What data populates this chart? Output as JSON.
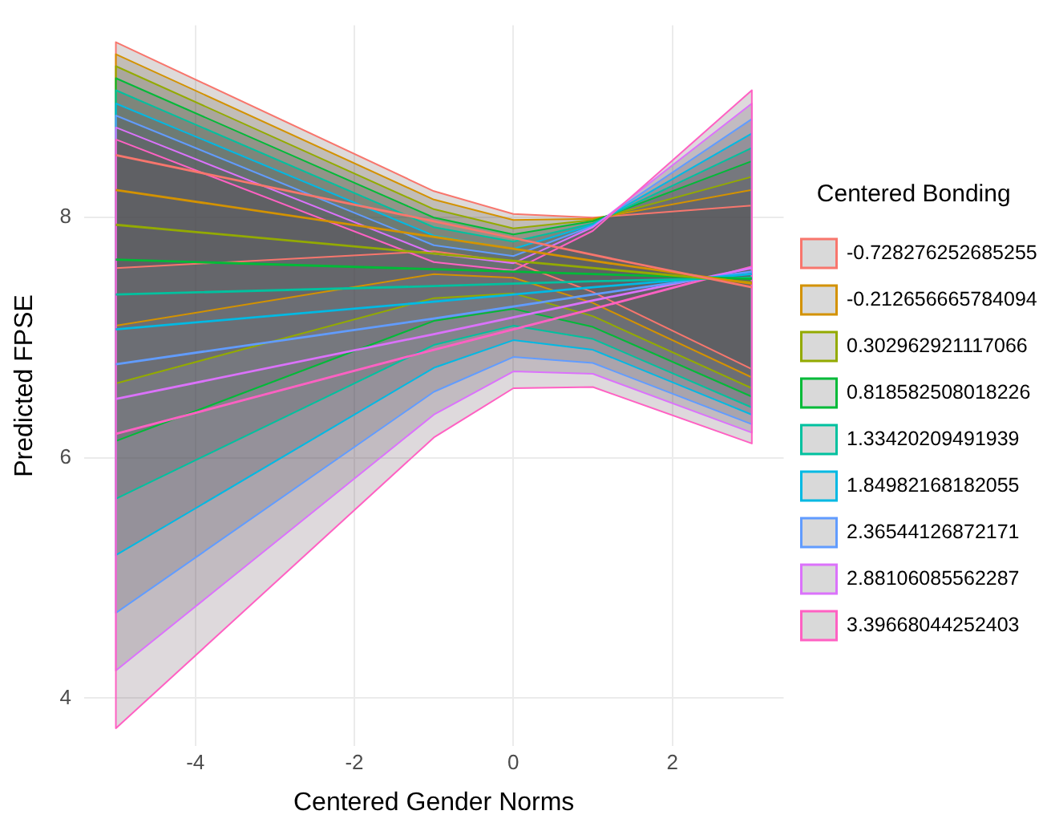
{
  "chart_data": {
    "type": "line",
    "xlabel": "Centered Gender Norms",
    "ylabel": "Predicted FPSE",
    "legend_title": "Centered Bonding",
    "legend": "right",
    "grid": true,
    "marker": "none",
    "line_style": "solid",
    "x": [
      -5,
      -1,
      0,
      1,
      3
    ],
    "xlim": [
      -5.4,
      3.4
    ],
    "xticks": [
      -4,
      -2,
      0,
      2
    ],
    "ylim": [
      3.6,
      9.6
    ],
    "yticks": [
      4,
      6,
      8
    ],
    "series": [
      {
        "name": "-0.728276252685255",
        "color": "#f8766d",
        "values": [
          8.52,
          7.97,
          7.83,
          7.69,
          7.42
        ],
        "lower": [
          7.58,
          7.72,
          7.63,
          7.38,
          6.74
        ],
        "upper": [
          9.46,
          8.22,
          8.03,
          8.0,
          8.1
        ]
      },
      {
        "name": "-0.212656665784094",
        "color": "#d39200",
        "values": [
          8.23,
          7.84,
          7.74,
          7.64,
          7.45
        ],
        "lower": [
          7.1,
          7.53,
          7.5,
          7.29,
          6.67
        ],
        "upper": [
          9.36,
          8.15,
          7.98,
          7.99,
          8.23
        ]
      },
      {
        "name": "0.302962921117066",
        "color": "#93aa00",
        "values": [
          7.94,
          7.7,
          7.64,
          7.58,
          7.46
        ],
        "lower": [
          6.62,
          7.33,
          7.37,
          7.18,
          6.58
        ],
        "upper": [
          9.26,
          8.07,
          7.91,
          7.98,
          8.34
        ]
      },
      {
        "name": "0.818582508018226",
        "color": "#00ba38",
        "values": [
          7.65,
          7.57,
          7.55,
          7.53,
          7.49
        ],
        "lower": [
          6.14,
          7.14,
          7.24,
          7.09,
          6.51
        ],
        "upper": [
          9.16,
          8.0,
          7.86,
          7.97,
          8.47
        ]
      },
      {
        "name": "1.33420209491939",
        "color": "#00c19f",
        "values": [
          7.36,
          7.43,
          7.45,
          7.47,
          7.5
        ],
        "lower": [
          5.66,
          6.94,
          7.1,
          6.99,
          6.42
        ],
        "upper": [
          9.06,
          7.92,
          7.8,
          7.95,
          8.58
        ]
      },
      {
        "name": "1.84982168182055",
        "color": "#00b9e3",
        "values": [
          7.07,
          7.3,
          7.36,
          7.42,
          7.53
        ],
        "lower": [
          5.19,
          6.75,
          6.98,
          6.9,
          6.36
        ],
        "upper": [
          8.95,
          7.85,
          7.74,
          7.94,
          8.7
        ]
      },
      {
        "name": "2.36544126872171",
        "color": "#619cff",
        "values": [
          6.78,
          7.16,
          7.26,
          7.36,
          7.55
        ],
        "lower": [
          4.71,
          6.55,
          6.84,
          6.79,
          6.28
        ],
        "upper": [
          8.85,
          7.77,
          7.68,
          7.93,
          8.82
        ]
      },
      {
        "name": "2.88106085562287",
        "color": "#db72fb",
        "values": [
          6.49,
          7.03,
          7.17,
          7.31,
          7.58
        ],
        "lower": [
          4.23,
          6.36,
          6.72,
          6.7,
          6.21
        ],
        "upper": [
          8.75,
          7.7,
          7.62,
          7.92,
          8.95
        ]
      },
      {
        "name": "3.39668044252403",
        "color": "#ff61c3",
        "values": [
          6.2,
          6.9,
          7.07,
          7.24,
          7.59
        ],
        "lower": [
          3.75,
          6.17,
          6.58,
          6.59,
          6.12
        ],
        "upper": [
          8.65,
          7.63,
          7.56,
          7.89,
          9.06
        ]
      }
    ]
  }
}
